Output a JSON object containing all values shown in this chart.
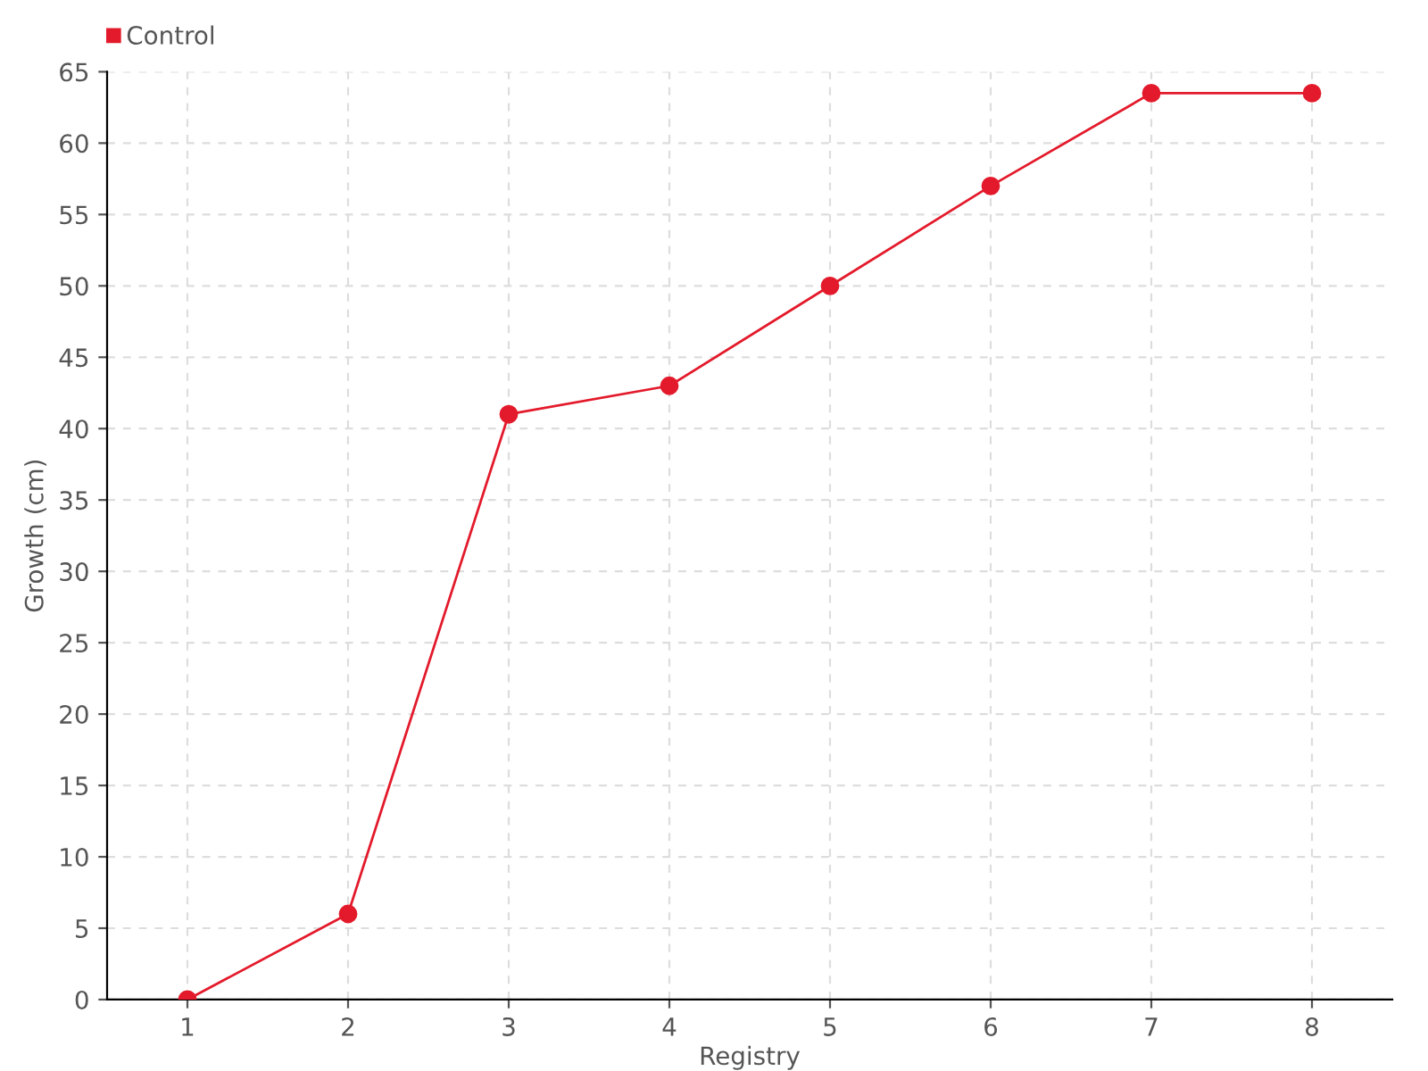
{
  "chart_data": {
    "type": "line",
    "xlabel": "Registry",
    "ylabel": "Growth (cm)",
    "categories": [
      "1",
      "2",
      "3",
      "4",
      "5",
      "6",
      "7",
      "8"
    ],
    "series": [
      {
        "name": "Control",
        "color": "#e31a2b",
        "values": [
          0,
          6,
          41,
          43,
          50,
          57,
          63.5,
          63.5
        ]
      }
    ],
    "ylim": [
      0,
      65
    ],
    "yticks": [
      0,
      5,
      10,
      15,
      20,
      25,
      30,
      35,
      40,
      45,
      50,
      55,
      60,
      65
    ],
    "grid": true,
    "legend": "top left",
    "marker": "circle",
    "line_style": "solid"
  }
}
